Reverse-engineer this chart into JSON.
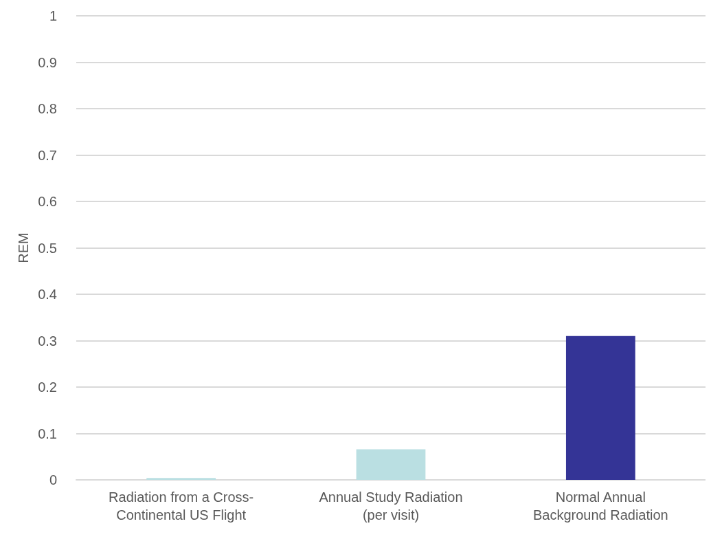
{
  "chart_data": {
    "type": "bar",
    "ylabel": "REM",
    "categories": [
      "Radiation from a Cross-\nContinental US Flight",
      "Annual Study Radiation\n(per visit)",
      "Normal Annual\nBackground Radiation"
    ],
    "values": [
      0.004,
      0.066,
      0.31
    ],
    "colors": [
      "#badfe2",
      "#badfe2",
      "#343496"
    ],
    "ylim": [
      0,
      1
    ],
    "yticks": [
      0,
      0.1,
      0.2,
      0.3,
      0.4,
      0.5,
      0.6,
      0.7,
      0.8,
      0.9,
      1
    ],
    "grid": "y"
  }
}
